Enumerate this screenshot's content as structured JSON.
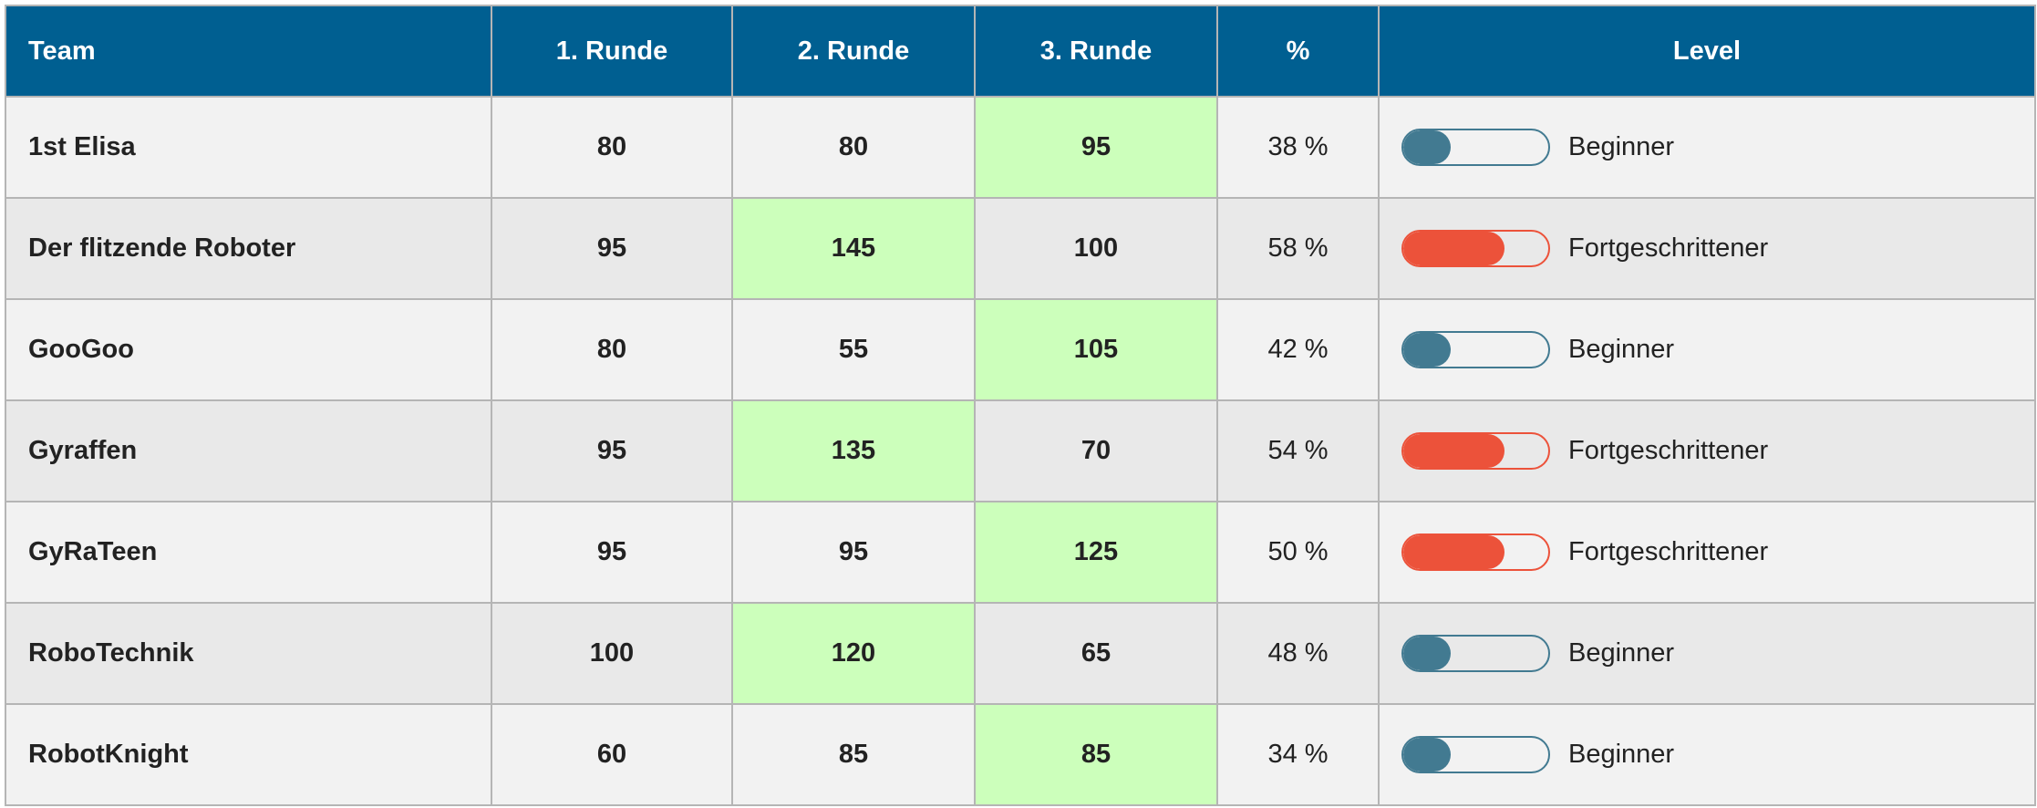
{
  "headers": {
    "team": "Team",
    "r1": "1. Runde",
    "r2": "2. Runde",
    "r3": "3. Runde",
    "pct": "%",
    "level": "Level"
  },
  "colors": {
    "header": "#005f91",
    "best": "#ccffbb",
    "beginner": "#427a91",
    "advanced": "#ec523a"
  },
  "rows": [
    {
      "team": "1st Elisa",
      "r1": "80",
      "r2": "80",
      "r3": "95",
      "best": "r3",
      "pct": "38 %",
      "level": "Beginner",
      "level_type": "beginner",
      "level_fill": 0.33
    },
    {
      "team": "Der flitzende Roboter",
      "r1": "95",
      "r2": "145",
      "r3": "100",
      "best": "r2",
      "pct": "58 %",
      "level": "Fortgeschrittener",
      "level_type": "advanced",
      "level_fill": 0.7
    },
    {
      "team": "GooGoo",
      "r1": "80",
      "r2": "55",
      "r3": "105",
      "best": "r3",
      "pct": "42 %",
      "level": "Beginner",
      "level_type": "beginner",
      "level_fill": 0.33
    },
    {
      "team": "Gyraffen",
      "r1": "95",
      "r2": "135",
      "r3": "70",
      "best": "r2",
      "pct": "54 %",
      "level": "Fortgeschrittener",
      "level_type": "advanced",
      "level_fill": 0.7
    },
    {
      "team": "GyRaTeen",
      "r1": "95",
      "r2": "95",
      "r3": "125",
      "best": "r3",
      "pct": "50 %",
      "level": "Fortgeschrittener",
      "level_type": "advanced",
      "level_fill": 0.7
    },
    {
      "team": "RoboTechnik",
      "r1": "100",
      "r2": "120",
      "r3": "65",
      "best": "r2",
      "pct": "48 %",
      "level": "Beginner",
      "level_type": "beginner",
      "level_fill": 0.33
    },
    {
      "team": "RobotKnight",
      "r1": "60",
      "r2": "85",
      "r3": "85",
      "best": "r3",
      "pct": "34 %",
      "level": "Beginner",
      "level_type": "beginner",
      "level_fill": 0.33
    }
  ]
}
